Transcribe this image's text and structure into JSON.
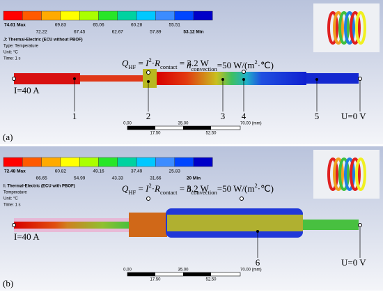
{
  "panels": [
    {
      "legend": {
        "top": [
          "74.61 Max",
          "69.83",
          "65.06",
          "60.28",
          "55.51"
        ],
        "bottom": [
          "72.22",
          "67.45",
          "62.67",
          "57.89",
          "53.12 Min"
        ]
      },
      "info": [
        "J: Thermal-Electric (ECU without PBOF)",
        "Type: Temperature",
        "Unit: °C",
        "Time: 1 s"
      ],
      "equation_q": [
        {
          "text": "Q",
          "style": "i"
        },
        {
          "text": "HF",
          "style": "sub"
        },
        {
          "text": " = "
        },
        {
          "text": "I",
          "style": "i"
        },
        {
          "text": "2",
          "style": "sup"
        },
        {
          "text": "·"
        },
        {
          "text": "R",
          "style": "i"
        },
        {
          "text": "contact",
          "style": "sub"
        },
        {
          "text": " = 3.2 W"
        }
      ],
      "equation_h": [
        {
          "text": "h",
          "style": "i"
        },
        {
          "text": "convection",
          "style": "sub"
        },
        {
          "text": "=50 W/(m"
        },
        {
          "text": "2",
          "style": "sup"
        },
        {
          "text": "·℃)"
        }
      ],
      "current": "I=40 A",
      "voltage": "U=0 V",
      "markers": [
        "1",
        "2",
        "3",
        "4",
        "5"
      ],
      "scale": {
        "top": [
          "0.00",
          "35.00",
          "70.00 (mm)"
        ],
        "bottom": [
          "17.50",
          "52.50"
        ]
      },
      "label": "(a)"
    },
    {
      "legend": {
        "top": [
          "72.48 Max",
          "60.82",
          "49.16",
          "37.49",
          "25.83"
        ],
        "bottom": [
          "66.65",
          "54.99",
          "43.33",
          "31.66",
          "20 Min"
        ]
      },
      "info": [
        "I: Thermal-Electric (ECU with PBOF)",
        "Temperature",
        "Unit: °C",
        "Time: 1 s"
      ],
      "equation_q": [
        {
          "text": "Q",
          "style": "i"
        },
        {
          "text": "HF",
          "style": "sub"
        },
        {
          "text": " = "
        },
        {
          "text": "I",
          "style": "i"
        },
        {
          "text": "2",
          "style": "sup"
        },
        {
          "text": "·"
        },
        {
          "text": "R",
          "style": "i"
        },
        {
          "text": "contact",
          "style": "sub"
        },
        {
          "text": " = 3.2 W"
        }
      ],
      "equation_h": [
        {
          "text": "h",
          "style": "i"
        },
        {
          "text": "convection",
          "style": "sub"
        },
        {
          "text": "=50 W/(m"
        },
        {
          "text": "2",
          "style": "sup"
        },
        {
          "text": "·℃)"
        }
      ],
      "current": "I=40 A",
      "voltage": "U=0 V",
      "markers": [
        "6"
      ],
      "scale": {
        "top": [
          "0.00",
          "35.00",
          "70.00 (mm)"
        ],
        "bottom": [
          "17.50",
          "52.50"
        ]
      },
      "label": "(b)"
    }
  ]
}
